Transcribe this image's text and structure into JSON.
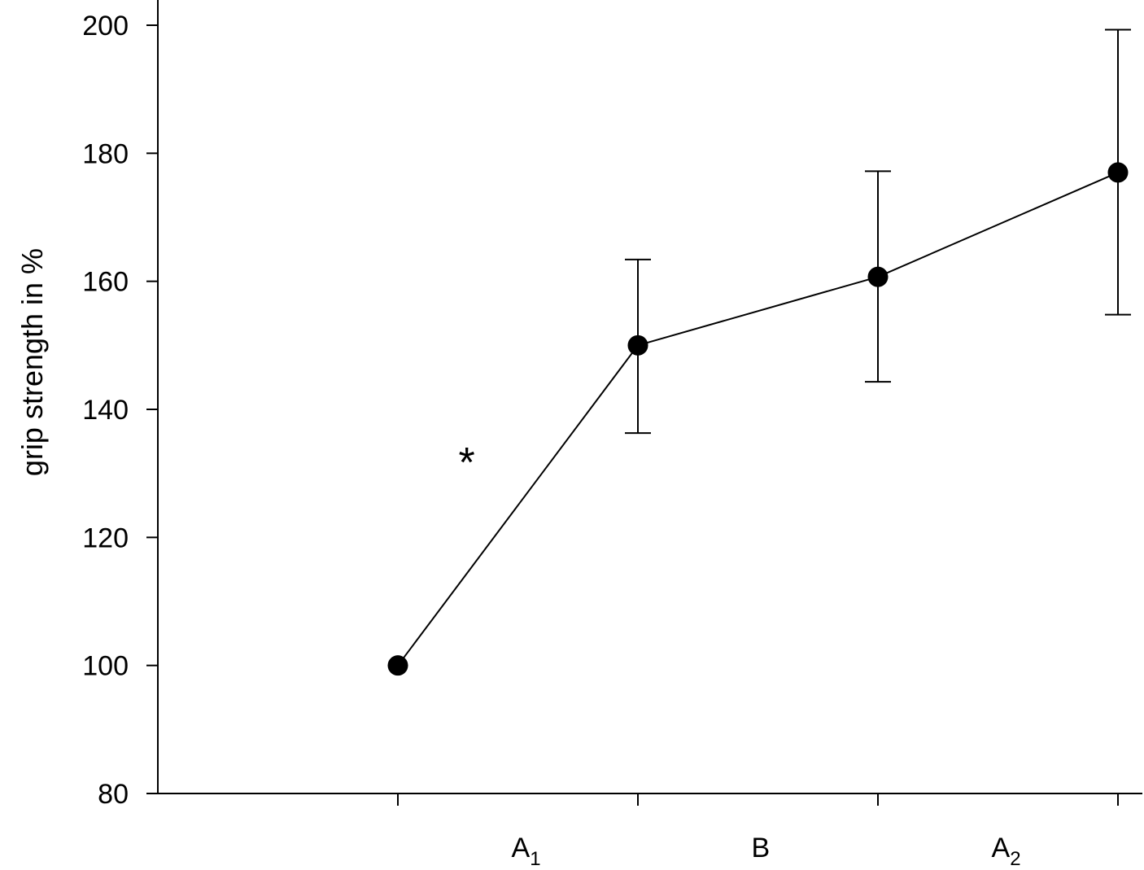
{
  "chart_data": {
    "type": "line",
    "ylabel": "grip strength in %",
    "ylim": [
      80,
      200
    ],
    "yticks": [
      80,
      100,
      120,
      140,
      160,
      180,
      200
    ],
    "x": [
      1,
      2,
      3,
      4
    ],
    "series": [
      {
        "values": [
          100,
          150,
          160.7,
          177
        ],
        "error_low": [
          100,
          136.3,
          144.3,
          154.8
        ],
        "error_high": [
          100,
          163.4,
          177.2,
          199.3
        ],
        "color": "#000000"
      }
    ],
    "phase_labels": [
      {
        "main": "A",
        "sub": "1",
        "between": [
          1,
          2
        ]
      },
      {
        "main": "B",
        "sub": "",
        "between": [
          2,
          3
        ]
      },
      {
        "main": "A",
        "sub": "2",
        "between": [
          3,
          4
        ]
      }
    ],
    "annotations": [
      {
        "text": "*",
        "x": 1.3,
        "y": 132
      }
    ],
    "grid": false
  }
}
